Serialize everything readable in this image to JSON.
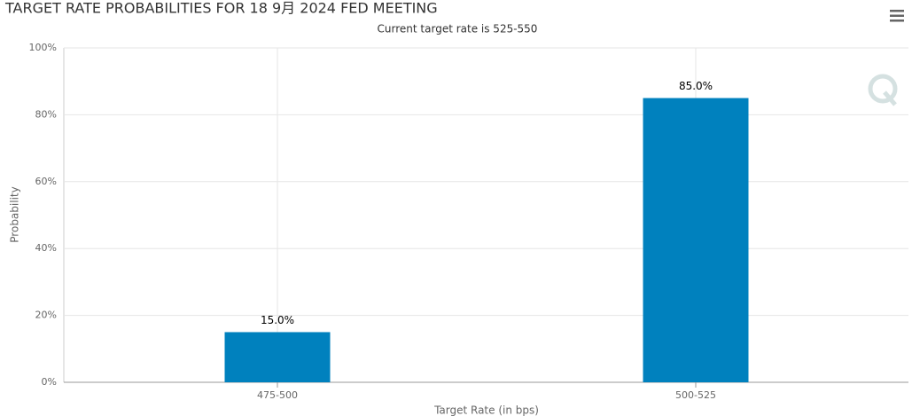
{
  "chart_data": {
    "type": "bar",
    "title": "TARGET RATE PROBABILITIES FOR 18 9月 2024 FED MEETING",
    "subtitle": "Current target rate is 525-550",
    "x_label": "Target Rate (in bps)",
    "y_label": "Probability",
    "categories": [
      "475-500",
      "500-525"
    ],
    "values": [
      15,
      85
    ],
    "value_labels": [
      "15.0%",
      "85.0%"
    ],
    "color": "#0081be",
    "ylim": [
      0,
      100
    ],
    "yticks": [
      {
        "value": 0,
        "label": "0%"
      },
      {
        "value": 20,
        "label": "20%"
      },
      {
        "value": 40,
        "label": "40%"
      },
      {
        "value": 60,
        "label": "60%"
      },
      {
        "value": 80,
        "label": "80%"
      },
      {
        "value": 100,
        "label": "100%"
      }
    ],
    "grid": true
  }
}
